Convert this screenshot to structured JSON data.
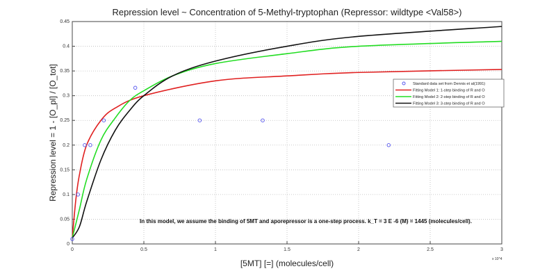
{
  "chart_data": {
    "type": "line",
    "title": "Repression level ~ Concentration of 5-Methyl-tryptophan (Repressor: wildtype <Val58>)",
    "xlabel": "[5MT] [=] (molecules/cell)",
    "ylabel": "Repression level =  1 - [O_pl] / [O_tot]",
    "x_multiplier": "x 10^4",
    "xlim": [
      0,
      30000
    ],
    "ylim": [
      0,
      0.45
    ],
    "grid": true,
    "legend": "right",
    "xticks": [
      0,
      5000,
      10000,
      15000,
      20000,
      25000,
      30000
    ],
    "xtick_labels": [
      "0",
      "0.5",
      "1",
      "1.5",
      "2",
      "2.5",
      "3"
    ],
    "yticks": [
      0,
      0.05,
      0.1,
      0.15,
      0.2,
      0.25,
      0.3,
      0.35,
      0.4,
      0.45
    ],
    "ytick_labels": [
      "0",
      "0.05",
      "0.1",
      "0.15",
      "0.2",
      "0.25",
      "0.3",
      "0.35",
      "0.4",
      "0.45"
    ],
    "annotation": "In this model, we assume the binding of 5MT and aporepressor is a one-step process. k_T = 3 E -6 (M) = 1445 (molecules/cell).",
    "series": [
      {
        "name": "Standard data set from Dennis et al(1991)",
        "kind": "scatter",
        "color": "#5555ee",
        "x": [
          0,
          400,
          870,
          1260,
          2200,
          4400,
          8900,
          13300,
          22100
        ],
        "y": [
          0.01,
          0.1,
          0.2,
          0.2,
          0.25,
          0.316,
          0.25,
          0.25,
          0.2
        ]
      },
      {
        "name": "Fitting Model 1: 1-step binding of R and O",
        "kind": "line",
        "color": "#e02020",
        "x": [
          0,
          250,
          500,
          1000,
          2000,
          3000,
          5000,
          10000,
          15000,
          20000,
          30000
        ],
        "y": [
          0.012,
          0.09,
          0.14,
          0.2,
          0.25,
          0.275,
          0.3,
          0.33,
          0.34,
          0.347,
          0.353
        ]
      },
      {
        "name": "Fitting Model 2: 2-step binding of R and O",
        "kind": "line",
        "color": "#22dd22",
        "x": [
          0,
          500,
          1000,
          2000,
          3000,
          4000,
          5000,
          7000,
          10000,
          15000,
          20000,
          30000
        ],
        "y": [
          0.012,
          0.07,
          0.13,
          0.21,
          0.255,
          0.29,
          0.31,
          0.34,
          0.365,
          0.385,
          0.4,
          0.41
        ]
      },
      {
        "name": "Fitting Model 3: 3-step binding of R and O",
        "kind": "line",
        "color": "#111111",
        "x": [
          0,
          500,
          1000,
          2000,
          3000,
          4000,
          5000,
          7000,
          10000,
          15000,
          20000,
          30000
        ],
        "y": [
          0.012,
          0.035,
          0.085,
          0.17,
          0.23,
          0.27,
          0.3,
          0.34,
          0.37,
          0.4,
          0.42,
          0.44
        ]
      }
    ]
  }
}
